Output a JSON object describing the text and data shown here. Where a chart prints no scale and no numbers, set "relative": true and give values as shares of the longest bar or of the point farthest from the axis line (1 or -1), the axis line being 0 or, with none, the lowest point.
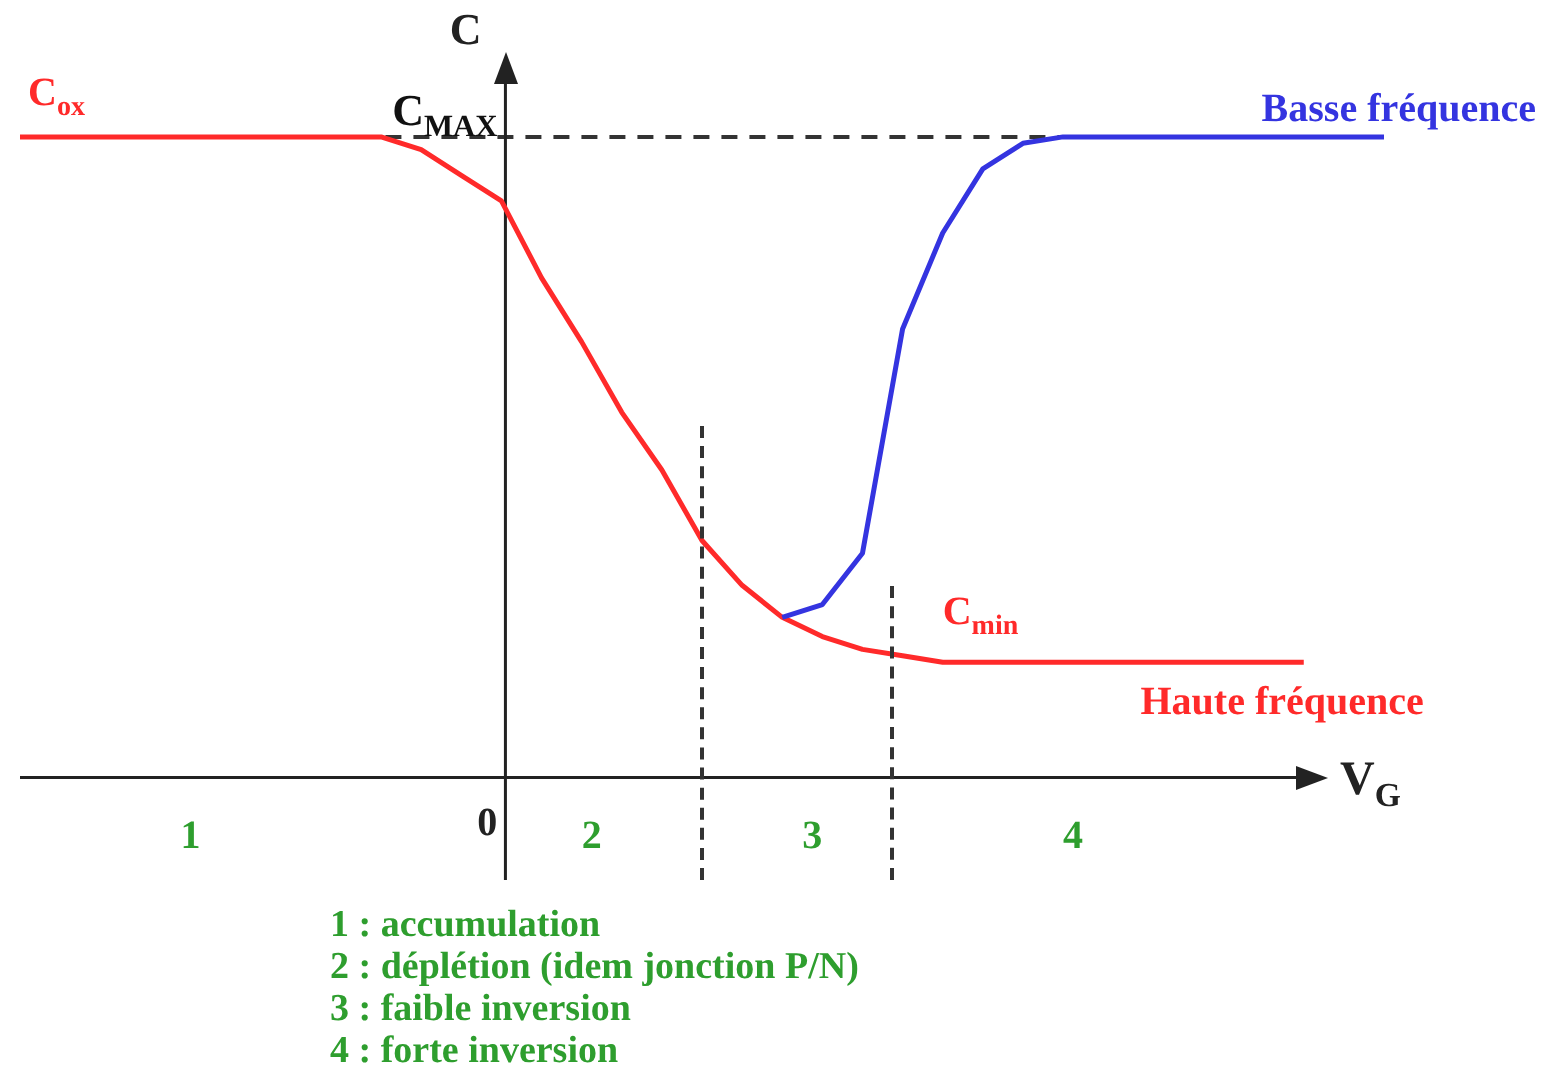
{
  "chart_data": {
    "type": "line",
    "relative": true,
    "xlabel": "V$_{G}$",
    "ylabel": "C",
    "categories": [
      null,
      null,
      null,
      null,
      null,
      null,
      null,
      null,
      null,
      null,
      null,
      null,
      null,
      null,
      null,
      null,
      null,
      null,
      null,
      null,
      null,
      null,
      null,
      null,
      null,
      null,
      null,
      null,
      null,
      null,
      null,
      null,
      null,
      null,
      null
    ],
    "series": [
      {
        "name": "Basse fréquence",
        "color": "#3434e0",
        "values": [
          null,
          null,
          null,
          null,
          null,
          null,
          null,
          null,
          null,
          null,
          null,
          null,
          null,
          null,
          null,
          null,
          null,
          null,
          null,
          0.25,
          0.27,
          0.35,
          0.7,
          0.85,
          0.95,
          0.99,
          1,
          1,
          1,
          1,
          1,
          1,
          1,
          1,
          1
        ]
      },
      {
        "name": "Haute fréquence",
        "color": "#ff2a2a",
        "values": [
          1,
          1,
          1,
          1,
          1,
          1,
          1,
          1,
          1,
          1,
          0.98,
          0.94,
          0.9,
          0.78,
          0.68,
          0.57,
          0.48,
          0.37,
          0.3,
          0.25,
          0.22,
          0.2,
          0.19,
          0.18,
          0.18,
          0.18,
          0.18,
          0.18,
          0.18,
          0.18,
          0.18,
          0.18,
          0.18,
          null,
          null
        ]
      }
    ],
    "ref_lines": [
      {
        "axis": "y",
        "value": 1,
        "label": "C$_{MAX}$",
        "line_style": "dashed"
      }
    ],
    "annotations": [
      "C$_{ox}$",
      "C$_{min}$",
      "0",
      "1",
      "2",
      "3",
      "4",
      "1 : accumulation",
      "2 : déplétion (idem jonction P/N)",
      "3 : faible inversion",
      "4 : forte inversion"
    ],
    "legend": false,
    "marker": "none",
    "line_style": "solid"
  }
}
